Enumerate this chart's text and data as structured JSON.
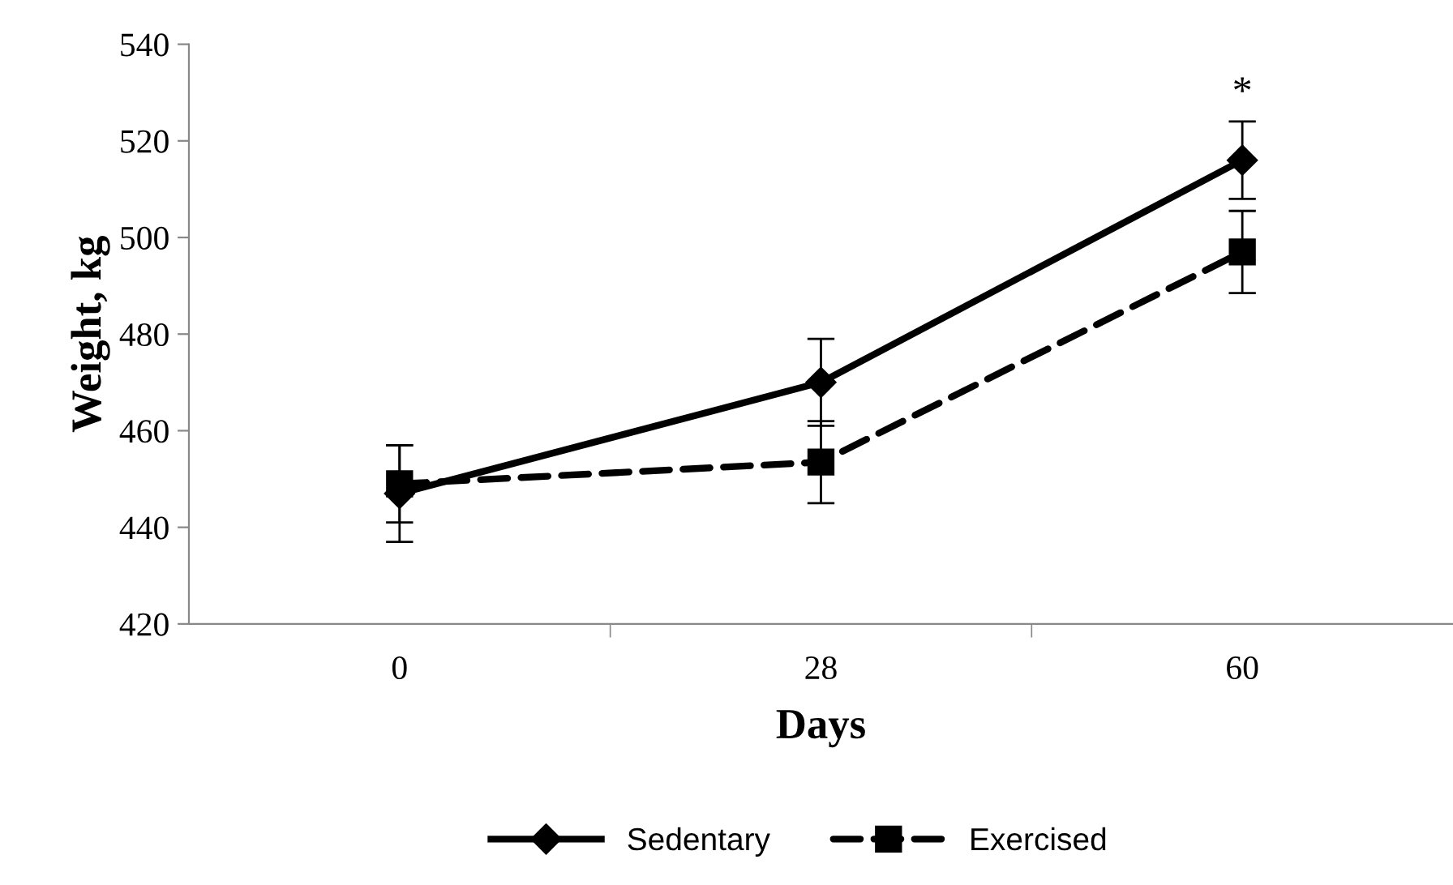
{
  "chart_data": {
    "type": "line",
    "xlabel": "Days",
    "ylabel": "Weight, kg",
    "categories": [
      "0",
      "28",
      "60"
    ],
    "series": [
      {
        "name": "Sedentary",
        "color": "#000000",
        "values": [
          447,
          470,
          516
        ],
        "errors": [
          10,
          9,
          8
        ],
        "marker": "diamond",
        "line_style": "solid"
      },
      {
        "name": "Exercised",
        "color": "#000000",
        "values": [
          449,
          453.5,
          497
        ],
        "errors": [
          8,
          8.5,
          8.5
        ],
        "marker": "square",
        "line_style": "dashed"
      }
    ],
    "ylim": [
      420,
      540
    ],
    "yticks": [
      420,
      440,
      460,
      480,
      500,
      520,
      540
    ],
    "annotations": [
      "*"
    ],
    "grid": false,
    "legend": "bottom"
  }
}
